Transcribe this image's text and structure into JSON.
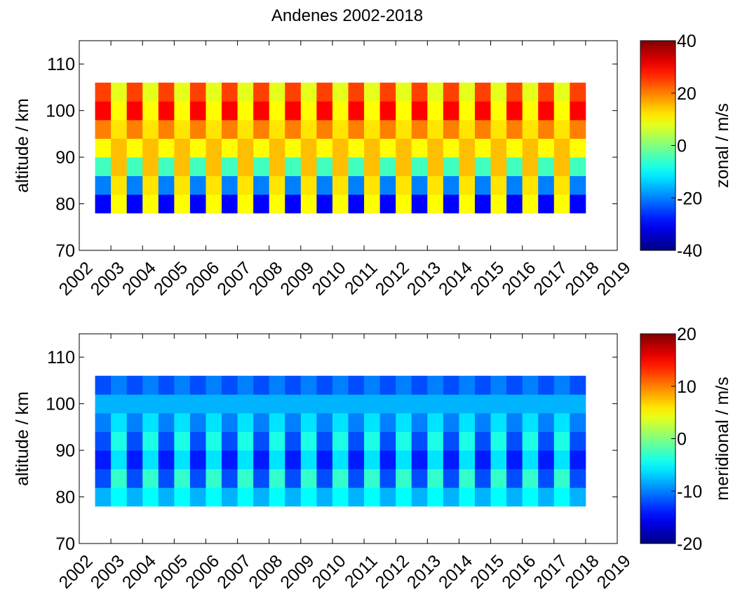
{
  "chart_data": [
    {
      "type": "heatmap",
      "title": "Andenes 2002-2018",
      "ylabel": "altitude / km",
      "colorbar_label": "zonal / m/s",
      "colormap": "jet",
      "xbins": [
        2002.5,
        2003,
        2003.5,
        2004,
        2004.5,
        2005,
        2005.5,
        2006,
        2006.5,
        2007,
        2007.5,
        2008,
        2008.5,
        2009,
        2009.5,
        2010,
        2010.5,
        2011,
        2011.5,
        2012,
        2012.5,
        2013,
        2013.5,
        2014,
        2014.5,
        2015,
        2015.5,
        2016,
        2016.5,
        2017,
        2017.5,
        2018
      ],
      "ybins": [
        78,
        82,
        86,
        90,
        94,
        98,
        102,
        106
      ],
      "z": [
        [
          -30,
          10,
          -30,
          10,
          -30,
          10,
          -30,
          10,
          -30,
          10,
          -30,
          10,
          -30,
          10,
          -30,
          10,
          -30,
          10,
          -30,
          10,
          -30,
          10,
          -30,
          10,
          -30,
          10,
          -30,
          10,
          -30,
          10,
          -30
        ],
        [
          -20,
          12,
          -20,
          12,
          -20,
          12,
          -20,
          12,
          -20,
          12,
          -20,
          12,
          -20,
          12,
          -20,
          12,
          -20,
          12,
          -20,
          12,
          -20,
          12,
          -20,
          12,
          -20,
          12,
          -20,
          12,
          -20,
          12,
          -20
        ],
        [
          -5,
          15,
          -5,
          15,
          -5,
          15,
          -5,
          15,
          -5,
          15,
          -5,
          15,
          -5,
          15,
          -5,
          15,
          -5,
          15,
          -5,
          15,
          -5,
          15,
          -5,
          15,
          -5,
          15,
          -5,
          15,
          -5,
          15,
          -5
        ],
        [
          10,
          15,
          10,
          15,
          10,
          15,
          10,
          15,
          10,
          15,
          10,
          15,
          10,
          15,
          10,
          15,
          10,
          15,
          10,
          15,
          10,
          15,
          10,
          15,
          10,
          15,
          10,
          15,
          10,
          15,
          10
        ],
        [
          20,
          12,
          20,
          12,
          20,
          12,
          20,
          12,
          20,
          12,
          20,
          12,
          20,
          12,
          20,
          12,
          20,
          12,
          20,
          12,
          20,
          12,
          20,
          12,
          20,
          12,
          20,
          12,
          20,
          12,
          20
        ],
        [
          30,
          10,
          30,
          10,
          30,
          10,
          30,
          10,
          30,
          10,
          30,
          10,
          30,
          10,
          30,
          10,
          30,
          10,
          30,
          10,
          30,
          10,
          30,
          10,
          30,
          10,
          30,
          10,
          30,
          10,
          30
        ],
        [
          25,
          8,
          25,
          8,
          25,
          8,
          25,
          8,
          25,
          8,
          25,
          8,
          25,
          8,
          25,
          8,
          25,
          8,
          25,
          8,
          25,
          8,
          25,
          8,
          25,
          8,
          25,
          8,
          25,
          8,
          25
        ]
      ],
      "xlim": [
        2002,
        2019
      ],
      "xticks": [
        2002,
        2003,
        2004,
        2005,
        2006,
        2007,
        2008,
        2009,
        2010,
        2011,
        2012,
        2013,
        2014,
        2015,
        2016,
        2017,
        2018,
        2019
      ],
      "ylim": [
        70,
        115
      ],
      "yticks": [
        70,
        80,
        90,
        100,
        110
      ],
      "zlim": [
        -40,
        40
      ],
      "zticks": [
        -40,
        -20,
        0,
        20,
        40
      ]
    },
    {
      "type": "heatmap",
      "ylabel": "altitude / km",
      "colorbar_label": "meridional / m/s",
      "colormap": "jet",
      "xbins": [
        2002.5,
        2003,
        2003.5,
        2004,
        2004.5,
        2005,
        2005.5,
        2006,
        2006.5,
        2007,
        2007.5,
        2008,
        2008.5,
        2009,
        2009.5,
        2010,
        2010.5,
        2011,
        2011.5,
        2012,
        2012.5,
        2013,
        2013.5,
        2014,
        2014.5,
        2015,
        2015.5,
        2016,
        2016.5,
        2017,
        2017.5,
        2018
      ],
      "ybins": [
        78,
        82,
        86,
        90,
        94,
        98,
        102,
        106
      ],
      "z": [
        [
          -8,
          -5,
          -8,
          -5,
          -8,
          -5,
          -8,
          -5,
          -8,
          -5,
          -8,
          -5,
          -8,
          -5,
          -8,
          -5,
          -8,
          -5,
          -8,
          -5,
          -8,
          -5,
          -8,
          -5,
          -8,
          -5,
          -8,
          -5,
          -8,
          -5,
          -8
        ],
        [
          -12,
          -3,
          -12,
          -3,
          -12,
          -3,
          -12,
          -3,
          -12,
          -3,
          -12,
          -3,
          -12,
          -3,
          -12,
          -3,
          -12,
          -3,
          -12,
          -3,
          -12,
          -3,
          -12,
          -3,
          -12,
          -3,
          -12,
          -3,
          -12,
          -3,
          -12
        ],
        [
          -14,
          -6,
          -14,
          -6,
          -14,
          -6,
          -14,
          -6,
          -14,
          -6,
          -14,
          -6,
          -14,
          -6,
          -14,
          -6,
          -14,
          -6,
          -14,
          -6,
          -14,
          -6,
          -14,
          -6,
          -14,
          -6,
          -14,
          -6,
          -14,
          -6,
          -14
        ],
        [
          -12,
          -4,
          -12,
          -4,
          -12,
          -4,
          -12,
          -4,
          -12,
          -4,
          -12,
          -4,
          -12,
          -4,
          -12,
          -4,
          -12,
          -4,
          -12,
          -4,
          -12,
          -4,
          -12,
          -4,
          -12,
          -4,
          -12,
          -4,
          -12,
          -4,
          -12
        ],
        [
          -10,
          -6,
          -10,
          -6,
          -10,
          -6,
          -10,
          -6,
          -10,
          -6,
          -10,
          -6,
          -10,
          -6,
          -10,
          -6,
          -10,
          -6,
          -10,
          -6,
          -10,
          -6,
          -10,
          -6,
          -10,
          -6,
          -10,
          -6,
          -10,
          -6,
          -10
        ],
        [
          -8,
          -8,
          -8,
          -8,
          -8,
          -8,
          -8,
          -8,
          -8,
          -8,
          -8,
          -8,
          -8,
          -8,
          -8,
          -8,
          -8,
          -8,
          -8,
          -8,
          -8,
          -8,
          -8,
          -8,
          -8,
          -8,
          -8,
          -8,
          -8,
          -8,
          -8
        ],
        [
          -12,
          -10,
          -12,
          -10,
          -12,
          -10,
          -12,
          -10,
          -12,
          -10,
          -12,
          -10,
          -12,
          -10,
          -12,
          -10,
          -12,
          -10,
          -12,
          -10,
          -12,
          -10,
          -12,
          -10,
          -12,
          -10,
          -12,
          -10,
          -12,
          -10,
          -12
        ]
      ],
      "xlim": [
        2002,
        2019
      ],
      "xticks": [
        2002,
        2003,
        2004,
        2005,
        2006,
        2007,
        2008,
        2009,
        2010,
        2011,
        2012,
        2013,
        2014,
        2015,
        2016,
        2017,
        2018,
        2019
      ],
      "ylim": [
        70,
        115
      ],
      "yticks": [
        70,
        80,
        90,
        100,
        110
      ],
      "zlim": [
        -20,
        20
      ],
      "zticks": [
        -20,
        -10,
        0,
        10,
        20
      ]
    }
  ]
}
